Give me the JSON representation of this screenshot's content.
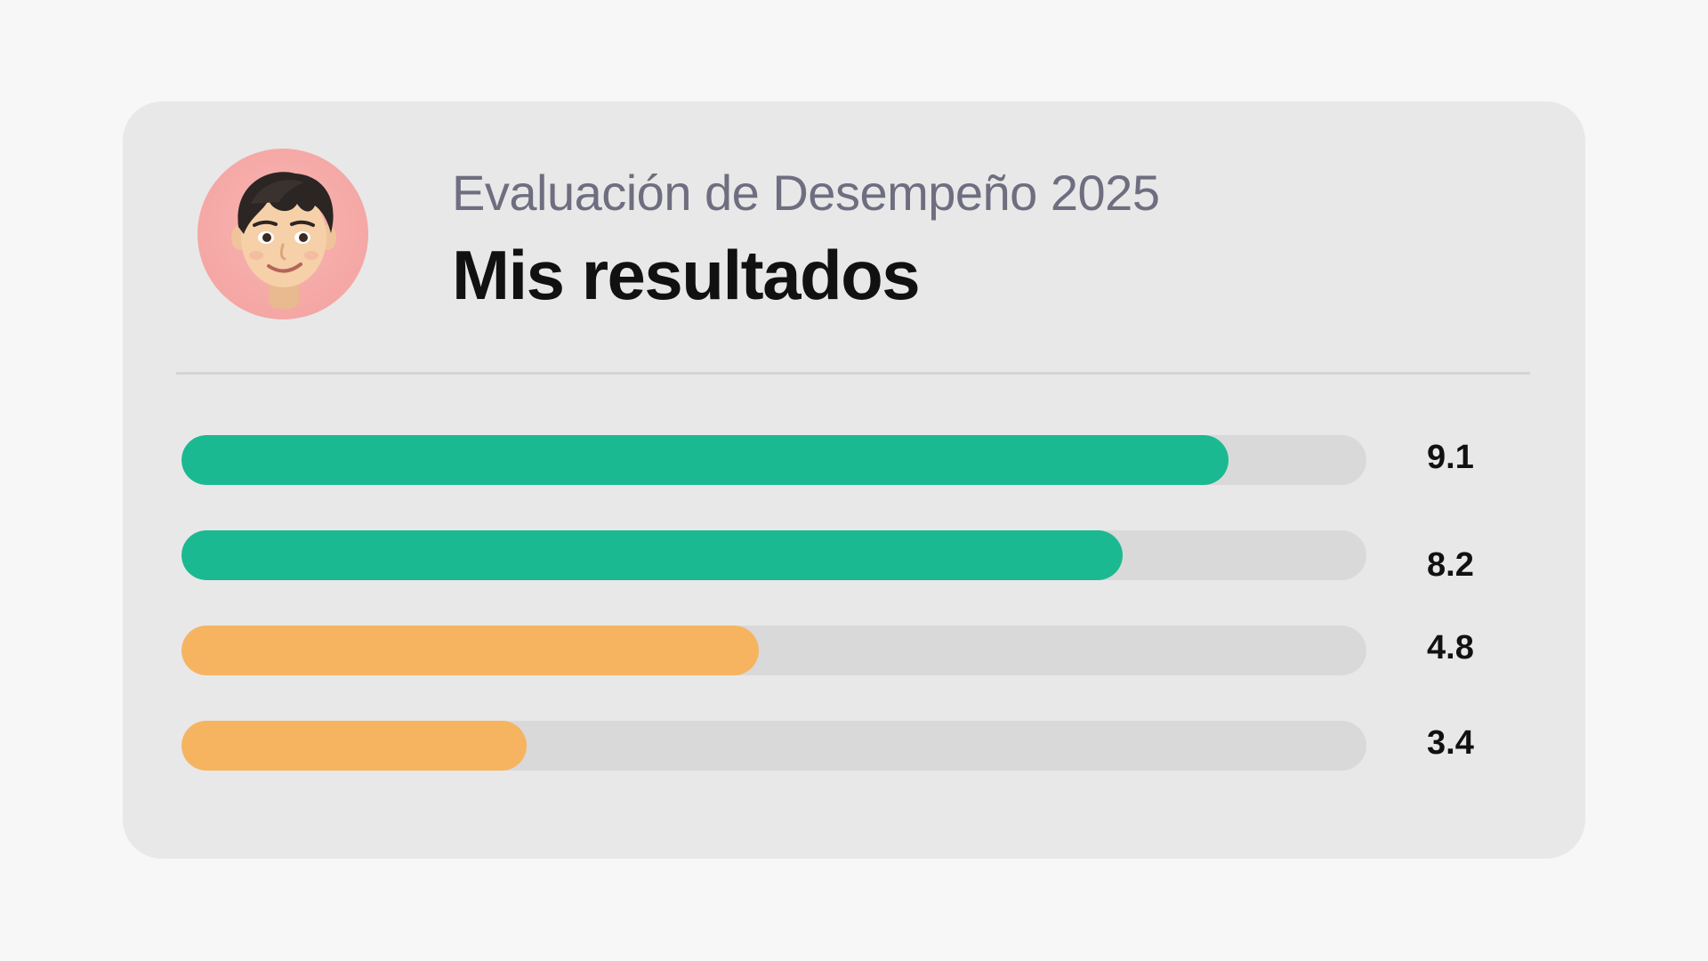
{
  "header": {
    "subtitle": "Evaluación de Desempeño 2025",
    "title": "Mis resultados"
  },
  "avatar": {
    "icon": "memoji-avatar-icon",
    "background": "#f5a9a7"
  },
  "results": [
    {
      "value_label": "9.1",
      "fraction": 0.884,
      "color": "#1bb991"
    },
    {
      "value_label": "8.2",
      "fraction": 0.794,
      "color": "#1bb991"
    },
    {
      "value_label": "4.8",
      "fraction": 0.487,
      "color": "#f6b460"
    },
    {
      "value_label": "3.4",
      "fraction": 0.291,
      "color": "#f6b460"
    }
  ],
  "colors": {
    "good": "#1bb991",
    "warning": "#f6b460",
    "track": "#d9d9d9"
  }
}
